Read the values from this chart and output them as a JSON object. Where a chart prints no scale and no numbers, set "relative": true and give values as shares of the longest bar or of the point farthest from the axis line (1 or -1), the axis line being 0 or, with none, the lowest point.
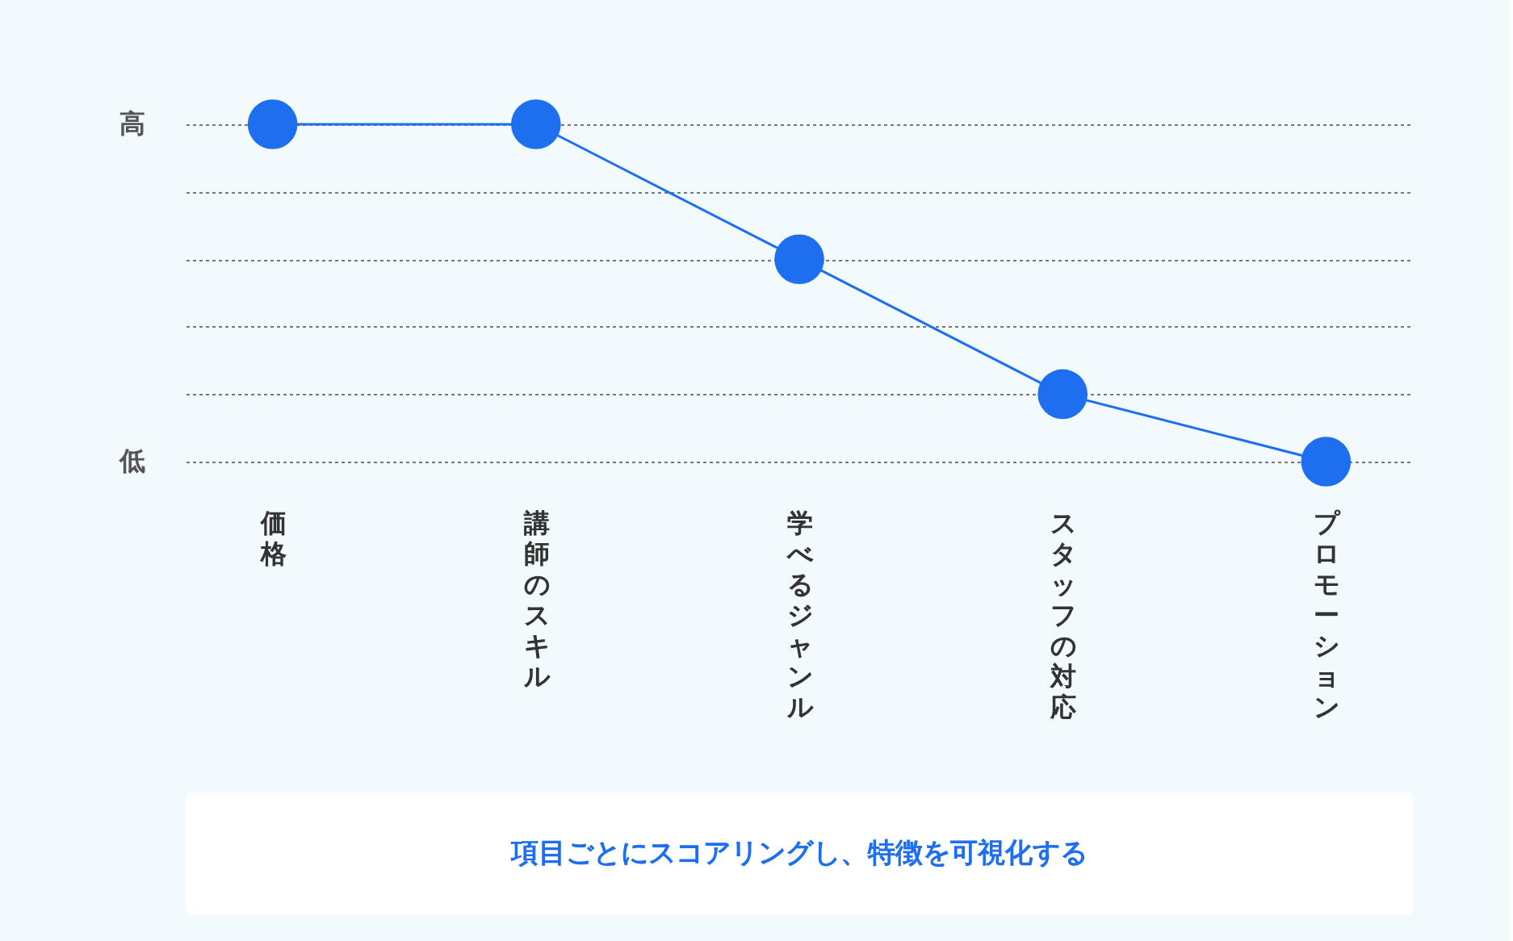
{
  "chart_data": {
    "type": "line",
    "categories": [
      "価格",
      "講師のスキル",
      "学べるジャンル",
      "スタッフの対応",
      "プロモーション"
    ],
    "series": [
      {
        "color": "#1e6ff0",
        "values": [
          1,
          1,
          0.6,
          0.2,
          0
        ]
      }
    ],
    "relative": true,
    "grid": "y",
    "marker": "circle",
    "line_style": "solid",
    "annotations": [
      "高",
      "低",
      "項目ごとにスコアリングし、特徴を可視化する"
    ]
  }
}
